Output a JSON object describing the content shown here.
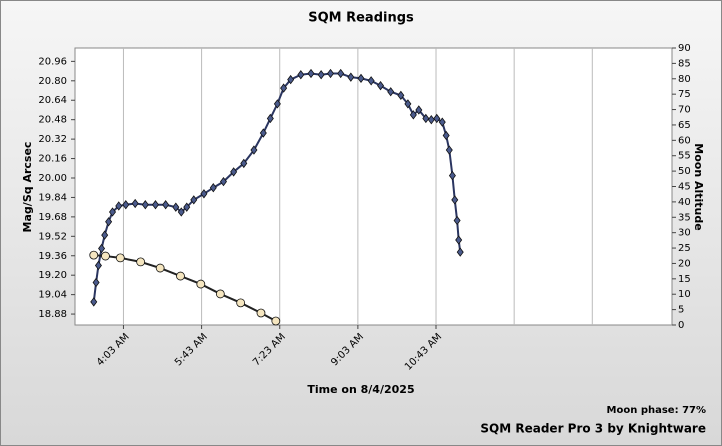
{
  "chart_data": {
    "type": "line",
    "title": "SQM Readings",
    "xlabel": "Time on 8/4/2025",
    "ylabel": "Mag/Sq Arcsec",
    "y2label": "Moon Altitude",
    "annotation": "Moon phase: 77%",
    "footer": "SQM Reader Pro 3 by Knightware",
    "grid": true,
    "xlim": [
      181,
      945
    ],
    "xticks": [
      {
        "value": 243,
        "label": "4:03 AM"
      },
      {
        "value": 343,
        "label": "5:43 AM"
      },
      {
        "value": 443,
        "label": "7:23 AM"
      },
      {
        "value": 543,
        "label": "9:03 AM"
      },
      {
        "value": 643,
        "label": "10:43 AM"
      }
    ],
    "xgrid": [
      743,
      843
    ],
    "ylim": [
      18.79,
      21.07
    ],
    "yticks": [
      18.88,
      19.04,
      {
        "value": 19.2,
        "label": "19.20"
      },
      19.36,
      19.52,
      19.68,
      19.84,
      {
        "value": 20,
        "label": "20.00"
      },
      20.16,
      20.32,
      20.48,
      20.64,
      {
        "value": 20.8,
        "label": "20.80"
      },
      20.96
    ],
    "y2lim": [
      0,
      90
    ],
    "y2ticks": [
      0,
      5,
      10,
      15,
      20,
      25,
      30,
      35,
      40,
      45,
      50,
      55,
      60,
      65,
      70,
      75,
      80,
      85,
      90
    ],
    "series": [
      {
        "color": "#4a5a8c",
        "marker": "diamond",
        "x": [
          205,
          208,
          211,
          215,
          219,
          224,
          229,
          237,
          246,
          258,
          271,
          284,
          297,
          310,
          317,
          324,
          333,
          346,
          358,
          371,
          384,
          397,
          410,
          422,
          431,
          440,
          448,
          457,
          470,
          483,
          496,
          508,
          521,
          534,
          547,
          560,
          572,
          585,
          598,
          607,
          614,
          621,
          630,
          637,
          644,
          651,
          656,
          660,
          664,
          667,
          670,
          672,
          674
        ],
        "values": [
          18.98,
          19.14,
          19.28,
          19.42,
          19.53,
          19.64,
          19.72,
          19.77,
          19.78,
          19.79,
          19.78,
          19.78,
          19.78,
          19.76,
          19.72,
          19.76,
          19.82,
          19.87,
          19.92,
          19.97,
          20.05,
          20.12,
          20.23,
          20.37,
          20.49,
          20.61,
          20.74,
          20.81,
          20.85,
          20.86,
          20.85,
          20.86,
          20.86,
          20.83,
          20.82,
          20.8,
          20.76,
          20.71,
          20.68,
          20.61,
          20.52,
          20.56,
          20.49,
          20.48,
          20.49,
          20.46,
          20.35,
          20.23,
          20.02,
          19.82,
          19.65,
          19.49,
          19.39
        ]
      },
      {
        "color": "#f5e6c0",
        "marker": "circle",
        "axis": "y2",
        "x": [
          205,
          220,
          239,
          265,
          290,
          316,
          342,
          367,
          393,
          419,
          438
        ],
        "values": [
          22.7,
          22.4,
          21.8,
          20.5,
          18.5,
          15.9,
          13.3,
          10.1,
          7.2,
          3.9,
          1.3
        ]
      }
    ]
  }
}
